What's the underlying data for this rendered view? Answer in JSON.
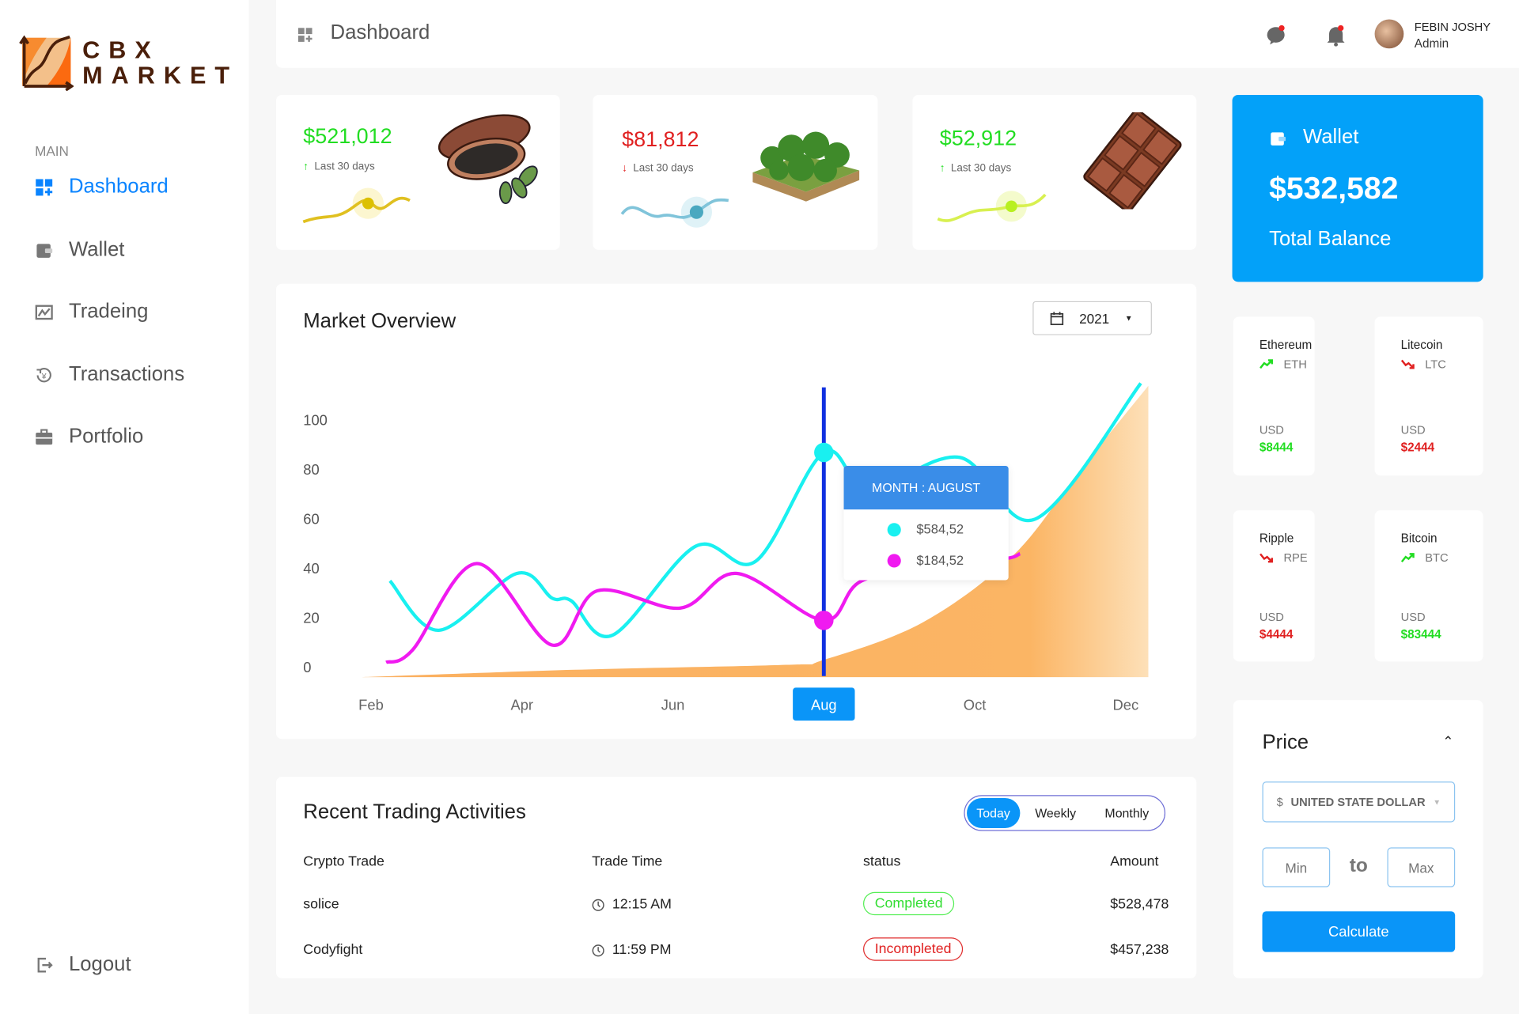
{
  "brand": {
    "line1": "CBX",
    "line2": "MARKET"
  },
  "sidebar": {
    "section": "MAIN",
    "items": [
      {
        "label": "Dashboard",
        "icon": "dashboard-icon",
        "active": true
      },
      {
        "label": "Wallet",
        "icon": "wallet-icon"
      },
      {
        "label": "Tradeing",
        "icon": "chart-icon"
      },
      {
        "label": "Transactions",
        "icon": "currency-exchange-icon"
      },
      {
        "label": "Portfolio",
        "icon": "briefcase-icon"
      }
    ],
    "logout": "Logout"
  },
  "header": {
    "title": "Dashboard",
    "user_name": "FEBIN JOSHY",
    "user_role": "Admin"
  },
  "stats": [
    {
      "value": "$521,012",
      "period": "Last 30 days",
      "trend": "up",
      "color": "#22dd22",
      "image": "cocoa-pod"
    },
    {
      "value": "$81,812",
      "period": "Last 30 days",
      "trend": "down",
      "color": "#e02020",
      "image": "forest-block"
    },
    {
      "value": "$52,912",
      "period": "Last 30 days",
      "trend": "up",
      "color": "#22dd22",
      "image": "chocolate-bar"
    }
  ],
  "wallet": {
    "title": "Wallet",
    "balance": "$532,582",
    "label": "Total Balance",
    "color": "#03a1f9"
  },
  "coins": [
    {
      "name": "Ethereum",
      "symbol": "ETH",
      "trend": "up",
      "currency": "USD",
      "amount": "$8444"
    },
    {
      "name": "Litecoin",
      "symbol": "LTC",
      "trend": "down",
      "currency": "USD",
      "amount": "$2444"
    },
    {
      "name": "Ripple",
      "symbol": "RPE",
      "trend": "down",
      "currency": "USD",
      "amount": "$4444"
    },
    {
      "name": "Bitcoin",
      "symbol": "BTC",
      "trend": "up",
      "currency": "USD",
      "amount": "$83444"
    }
  ],
  "price": {
    "title": "Price",
    "currency_symbol": "$",
    "currency": "UNITED STATE DOLLAR",
    "min_placeholder": "Min",
    "to": "to",
    "max_placeholder": "Max",
    "button": "Calculate"
  },
  "market": {
    "title": "Market Overview",
    "year": "2021"
  },
  "chart_data": {
    "type": "line",
    "yticks": [
      0,
      20,
      40,
      60,
      80,
      100
    ],
    "ylim": [
      0,
      118
    ],
    "xticks": [
      {
        "m": 2,
        "label": "Feb"
      },
      {
        "m": 4,
        "label": "Apr"
      },
      {
        "m": 6,
        "label": "Jun"
      },
      {
        "m": 8,
        "label": "Aug"
      },
      {
        "m": 10,
        "label": "Oct"
      },
      {
        "m": 12,
        "label": "Dec"
      }
    ],
    "highlight": {
      "month": 8,
      "label": "Aug"
    },
    "tooltip": {
      "title": "MONTH :  AUGUST",
      "values": [
        "$584,52",
        "$184,52"
      ]
    },
    "series": [
      {
        "color": "#19f0f0",
        "points": [
          [
            2.25,
            35
          ],
          [
            2.9,
            15
          ],
          [
            3.93,
            38
          ],
          [
            4.4,
            28
          ],
          [
            4.65,
            27
          ],
          [
            5.2,
            13
          ],
          [
            6.3,
            49
          ],
          [
            7.1,
            43
          ],
          [
            8,
            87
          ],
          [
            8.6,
            72
          ],
          [
            9.8,
            85
          ],
          [
            10.8,
            60
          ],
          [
            12.2,
            115
          ]
        ]
      },
      {
        "color": "#f01af0",
        "points": [
          [
            2.2,
            2
          ],
          [
            2.55,
            7
          ],
          [
            3.4,
            42
          ],
          [
            4.4,
            9
          ],
          [
            5.0,
            31
          ],
          [
            6.1,
            24
          ],
          [
            6.85,
            38
          ],
          [
            8,
            19
          ],
          [
            8.5,
            35
          ],
          [
            9.6,
            42
          ],
          [
            10.4,
            44
          ],
          [
            10.6,
            46
          ]
        ]
      },
      {
        "type": "area",
        "color": "#fbb564",
        "points": [
          [
            1.85,
            -4
          ],
          [
            4.7,
            -1
          ],
          [
            7.5,
            1
          ],
          [
            8,
            3
          ],
          [
            9.3,
            18
          ],
          [
            10.5,
            45
          ],
          [
            11.4,
            80
          ],
          [
            12.3,
            114
          ]
        ]
      }
    ]
  },
  "activities": {
    "title": "Recent Trading Activities",
    "filters": [
      "Today",
      "Weekly",
      "Monthly"
    ],
    "active_filter": "Today",
    "columns": [
      "Crypto Trade",
      "Trade Time",
      "status",
      "Amount"
    ],
    "rows": [
      {
        "trade": "solice",
        "time": "12:15 AM",
        "status": "Completed",
        "amount": "$528,478"
      },
      {
        "trade": "Codyfight",
        "time": "11:59 PM",
        "status": "Incompleted",
        "amount": "$457,238"
      }
    ]
  }
}
